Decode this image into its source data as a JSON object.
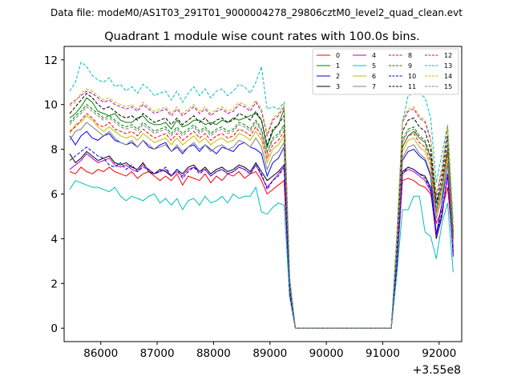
{
  "header": "Data file: modeM0/AS1T03_291T01_9000004278_29806cztM0_level2_quad_clean.evt",
  "chart_data": {
    "type": "line",
    "title": "Quadrant 1 module wise count rates with 100.0s bins.",
    "xlabel": "",
    "ylabel": "",
    "x_offset_label": "+3.55e8",
    "xlim": [
      85350,
      92400
    ],
    "ylim": [
      -0.6,
      12.6
    ],
    "xticks": [
      86000,
      87000,
      88000,
      89000,
      90000,
      91000,
      92000
    ],
    "yticks": [
      0,
      2,
      4,
      6,
      8,
      10,
      12
    ],
    "x": [
      85450,
      85550,
      85650,
      85750,
      85850,
      85950,
      86050,
      86150,
      86250,
      86350,
      86450,
      86550,
      86650,
      86750,
      86850,
      86950,
      87050,
      87150,
      87250,
      87350,
      87450,
      87550,
      87650,
      87750,
      87850,
      87950,
      88050,
      88150,
      88250,
      88350,
      88450,
      88550,
      88650,
      88750,
      88850,
      88950,
      89050,
      89150,
      89250,
      89350,
      89450,
      89550,
      89650,
      89750,
      89850,
      89950,
      90050,
      90150,
      90250,
      90350,
      90450,
      90550,
      90650,
      90750,
      90850,
      90950,
      91050,
      91150,
      91250,
      91350,
      91450,
      91550,
      91650,
      91750,
      91850,
      91950,
      92050,
      92150,
      92250
    ],
    "legend": {
      "placement": "top-right",
      "ncol": 4
    },
    "series": [
      {
        "name": "0",
        "color": "#ff0000",
        "dash": false,
        "values": [
          7.0,
          6.9,
          7.2,
          7.0,
          6.9,
          7.1,
          7.0,
          7.2,
          7.0,
          6.9,
          6.8,
          7.0,
          6.7,
          6.9,
          7.0,
          6.8,
          6.6,
          6.8,
          6.6,
          6.9,
          6.4,
          6.8,
          6.7,
          6.6,
          6.9,
          6.5,
          6.8,
          6.6,
          6.9,
          6.8,
          7.0,
          6.7,
          6.9,
          7.0,
          6.6,
          6.0,
          6.2,
          6.4,
          6.6,
          1.5,
          0,
          0,
          0,
          0,
          0,
          0,
          0,
          0,
          0,
          0,
          0,
          0,
          0,
          0,
          0,
          0,
          0,
          0,
          2.7,
          6.6,
          6.7,
          6.6,
          6.4,
          6.3,
          6.0,
          4.7,
          5.3,
          6.3,
          3.6
        ]
      },
      {
        "name": "1",
        "color": "#008000",
        "dash": false,
        "values": [
          9.4,
          9.6,
          9.9,
          10.3,
          10.1,
          9.7,
          9.6,
          9.5,
          9.6,
          9.3,
          9.2,
          9.2,
          9.4,
          9.5,
          9.2,
          9.1,
          9.1,
          9.2,
          8.9,
          9.3,
          9.0,
          9.1,
          9.3,
          9.3,
          9.1,
          9.2,
          9.1,
          9.3,
          9.2,
          9.4,
          9.3,
          9.4,
          9.5,
          9.6,
          9.3,
          8.1,
          8.8,
          9.1,
          9.8,
          2.0,
          0,
          0,
          0,
          0,
          0,
          0,
          0,
          0,
          0,
          0,
          0,
          0,
          0,
          0,
          0,
          0,
          0,
          0,
          3.6,
          8.1,
          8.6,
          8.8,
          8.5,
          8.3,
          7.6,
          5.6,
          6.4,
          7.9,
          4.2
        ]
      },
      {
        "name": "2",
        "color": "#0000ff",
        "dash": false,
        "values": [
          8.6,
          8.2,
          8.6,
          8.8,
          8.5,
          8.4,
          8.6,
          8.7,
          8.4,
          8.3,
          8.2,
          8.3,
          8.1,
          8.4,
          8.1,
          8.0,
          8.2,
          8.3,
          7.9,
          8.1,
          7.8,
          8.1,
          8.2,
          7.9,
          8.2,
          8.0,
          7.8,
          8.1,
          8.0,
          7.9,
          8.2,
          8.3,
          8.1,
          8.0,
          7.8,
          6.8,
          7.4,
          7.6,
          8.1,
          1.8,
          0,
          0,
          0,
          0,
          0,
          0,
          0,
          0,
          0,
          0,
          0,
          0,
          0,
          0,
          0,
          0,
          0,
          0,
          3.1,
          7.5,
          7.9,
          8.0,
          7.7,
          7.5,
          6.8,
          4.2,
          5.6,
          7.4,
          3.2
        ]
      },
      {
        "name": "3",
        "color": "#000000",
        "dash": false,
        "values": [
          7.8,
          7.4,
          7.6,
          7.9,
          7.7,
          7.5,
          7.6,
          7.7,
          7.4,
          7.3,
          7.4,
          7.2,
          7.1,
          7.4,
          7.0,
          6.9,
          7.1,
          7.0,
          6.8,
          7.1,
          6.9,
          7.2,
          7.3,
          7.0,
          7.2,
          6.9,
          7.1,
          7.2,
          7.0,
          7.1,
          7.3,
          7.2,
          7.0,
          7.4,
          7.0,
          6.6,
          6.8,
          7.0,
          7.3,
          1.6,
          0,
          0,
          0,
          0,
          0,
          0,
          0,
          0,
          0,
          0,
          0,
          0,
          0,
          0,
          0,
          0,
          0,
          0,
          2.9,
          7.0,
          7.2,
          7.1,
          6.9,
          6.8,
          6.3,
          4.0,
          5.0,
          6.9,
          3.4
        ]
      },
      {
        "name": "4",
        "color": "#c000c0",
        "dash": false,
        "values": [
          7.1,
          7.3,
          7.5,
          7.8,
          7.6,
          7.4,
          7.5,
          7.6,
          7.3,
          7.2,
          7.3,
          7.1,
          7.0,
          7.3,
          7.1,
          6.9,
          7.0,
          7.1,
          6.8,
          7.0,
          6.8,
          7.1,
          7.2,
          7.0,
          7.1,
          6.8,
          7.0,
          7.1,
          6.9,
          7.0,
          7.2,
          7.1,
          6.9,
          7.3,
          6.8,
          6.3,
          6.6,
          6.9,
          7.2,
          1.5,
          0,
          0,
          0,
          0,
          0,
          0,
          0,
          0,
          0,
          0,
          0,
          0,
          0,
          0,
          0,
          0,
          0,
          0,
          2.8,
          6.9,
          7.1,
          7.0,
          6.8,
          6.6,
          6.1,
          4.1,
          5.1,
          6.8,
          3.3
        ]
      },
      {
        "name": "5",
        "color": "#00bfbf",
        "dash": false,
        "values": [
          6.2,
          6.6,
          6.5,
          6.4,
          6.3,
          6.3,
          6.2,
          6.1,
          6.3,
          5.9,
          5.7,
          5.9,
          5.8,
          5.7,
          5.9,
          6.0,
          5.6,
          5.8,
          5.5,
          5.8,
          5.3,
          5.7,
          5.8,
          5.5,
          5.9,
          5.6,
          5.7,
          5.9,
          5.6,
          6.0,
          5.8,
          5.9,
          5.9,
          6.3,
          5.2,
          5.1,
          5.4,
          5.6,
          5.5,
          1.4,
          0,
          0,
          0,
          0,
          0,
          0,
          0,
          0,
          0,
          0,
          0,
          0,
          0,
          0,
          0,
          0,
          0,
          0,
          2.4,
          5.3,
          5.3,
          5.9,
          5.9,
          4.3,
          4.1,
          3.1,
          4.7,
          5.6,
          2.5
        ]
      },
      {
        "name": "6",
        "color": "#bfbf00",
        "dash": false,
        "values": [
          8.7,
          9.1,
          9.2,
          9.5,
          9.3,
          9.0,
          8.8,
          9.0,
          8.8,
          8.6,
          8.5,
          8.6,
          8.4,
          8.7,
          8.5,
          8.3,
          8.4,
          8.5,
          8.2,
          8.5,
          8.2,
          8.4,
          8.6,
          8.3,
          8.5,
          8.2,
          8.4,
          8.5,
          8.3,
          8.4,
          8.7,
          8.6,
          8.4,
          8.8,
          8.4,
          7.4,
          8.0,
          8.2,
          8.6,
          1.9,
          0,
          0,
          0,
          0,
          0,
          0,
          0,
          0,
          0,
          0,
          0,
          0,
          0,
          0,
          0,
          0,
          0,
          0,
          3.4,
          7.9,
          8.4,
          8.5,
          8.1,
          7.9,
          7.2,
          5.1,
          6.1,
          7.7,
          3.9
        ]
      },
      {
        "name": "7",
        "color": "#808080",
        "dash": false,
        "values": [
          8.4,
          8.8,
          8.9,
          9.2,
          9.0,
          8.8,
          8.6,
          8.8,
          8.5,
          8.3,
          8.2,
          8.4,
          8.1,
          8.4,
          8.2,
          8.0,
          8.1,
          8.2,
          7.9,
          8.2,
          7.9,
          8.1,
          8.3,
          8.0,
          8.2,
          7.9,
          8.1,
          8.2,
          8.0,
          8.1,
          8.4,
          8.3,
          8.1,
          8.5,
          8.1,
          7.1,
          7.7,
          7.9,
          8.3,
          1.8,
          0,
          0,
          0,
          0,
          0,
          0,
          0,
          0,
          0,
          0,
          0,
          0,
          0,
          0,
          0,
          0,
          0,
          0,
          3.2,
          7.6,
          8.1,
          8.2,
          7.8,
          7.6,
          6.9,
          4.9,
          5.9,
          7.4,
          3.7
        ]
      },
      {
        "name": "8",
        "color": "#ff0000",
        "dash": true,
        "values": [
          8.8,
          9.0,
          9.3,
          9.6,
          9.4,
          9.1,
          9.0,
          9.2,
          8.9,
          8.8,
          8.7,
          8.8,
          8.6,
          8.9,
          8.7,
          8.5,
          8.6,
          8.7,
          8.4,
          8.7,
          8.4,
          8.6,
          8.8,
          8.5,
          8.7,
          8.4,
          8.6,
          8.7,
          8.5,
          8.6,
          8.9,
          8.8,
          8.6,
          9.0,
          8.6,
          7.6,
          8.2,
          8.4,
          8.8,
          1.9,
          0,
          0,
          0,
          0,
          0,
          0,
          0,
          0,
          0,
          0,
          0,
          0,
          0,
          0,
          0,
          0,
          0,
          0,
          3.4,
          8.1,
          8.6,
          8.7,
          8.3,
          8.1,
          7.4,
          5.2,
          6.3,
          7.9,
          4.0
        ]
      },
      {
        "name": "9",
        "color": "#008000",
        "dash": true,
        "values": [
          9.2,
          9.5,
          9.7,
          10.0,
          9.8,
          9.6,
          9.4,
          9.5,
          9.3,
          9.1,
          9.0,
          9.1,
          8.9,
          9.2,
          9.0,
          8.8,
          8.9,
          9.0,
          8.7,
          9.0,
          8.7,
          8.9,
          9.1,
          8.8,
          9.0,
          8.7,
          8.9,
          9.0,
          8.8,
          8.9,
          9.2,
          9.1,
          8.9,
          9.3,
          8.9,
          7.9,
          8.5,
          8.7,
          9.1,
          2.0,
          0,
          0,
          0,
          0,
          0,
          0,
          0,
          0,
          0,
          0,
          0,
          0,
          0,
          0,
          0,
          0,
          0,
          0,
          3.5,
          8.4,
          8.9,
          9.0,
          8.6,
          8.4,
          7.7,
          5.4,
          6.5,
          8.2,
          4.1
        ]
      },
      {
        "name": "10",
        "color": "#0000ff",
        "dash": true,
        "values": [
          7.5,
          7.7,
          7.9,
          8.1,
          7.9,
          7.7,
          7.6,
          7.3,
          7.2,
          7.4,
          7.1,
          7.3,
          7.0,
          7.2,
          7.1,
          6.9,
          7.0,
          7.2,
          6.8,
          7.1,
          6.7,
          7.0,
          7.2,
          6.9,
          7.1,
          6.8,
          7.0,
          7.1,
          6.9,
          7.0,
          7.2,
          7.1,
          6.9,
          7.3,
          6.9,
          6.2,
          6.6,
          6.8,
          7.2,
          1.5,
          0,
          0,
          0,
          0,
          0,
          0,
          0,
          0,
          0,
          0,
          0,
          0,
          0,
          0,
          0,
          0,
          0,
          0,
          2.8,
          6.9,
          7.2,
          7.1,
          6.9,
          6.7,
          6.2,
          4.2,
          5.2,
          6.9,
          3.3
        ]
      },
      {
        "name": "11",
        "color": "#000000",
        "dash": true,
        "values": [
          9.6,
          9.9,
          10.2,
          10.5,
          10.3,
          10.0,
          9.8,
          9.9,
          9.7,
          9.5,
          9.4,
          9.5,
          9.3,
          9.6,
          9.4,
          9.2,
          9.3,
          9.4,
          9.1,
          9.4,
          9.1,
          9.3,
          9.5,
          9.2,
          9.4,
          9.1,
          9.3,
          9.4,
          9.2,
          9.3,
          9.6,
          9.5,
          9.3,
          9.7,
          9.3,
          8.2,
          8.9,
          9.1,
          9.5,
          2.1,
          0,
          0,
          0,
          0,
          0,
          0,
          0,
          0,
          0,
          0,
          0,
          0,
          0,
          0,
          0,
          0,
          0,
          0,
          3.7,
          8.8,
          9.3,
          9.4,
          9.0,
          8.8,
          8.0,
          5.6,
          6.8,
          8.6,
          4.3
        ]
      },
      {
        "name": "12",
        "color": "#c000c0",
        "dash": true,
        "values": [
          10.0,
          10.2,
          10.4,
          10.6,
          10.5,
          10.3,
          10.1,
          10.2,
          10.0,
          9.9,
          9.8,
          9.9,
          9.7,
          10.0,
          9.8,
          9.6,
          9.7,
          9.8,
          9.5,
          9.8,
          9.5,
          9.7,
          9.9,
          9.6,
          9.8,
          9.5,
          9.7,
          9.8,
          9.6,
          9.7,
          10.0,
          9.9,
          9.7,
          10.1,
          9.7,
          8.6,
          9.3,
          9.5,
          9.9,
          2.2,
          0,
          0,
          0,
          0,
          0,
          0,
          0,
          0,
          0,
          0,
          0,
          0,
          0,
          0,
          0,
          0,
          0,
          0,
          3.9,
          9.2,
          9.7,
          9.8,
          9.4,
          9.2,
          8.4,
          5.9,
          7.1,
          9.0,
          4.5
        ]
      },
      {
        "name": "13",
        "color": "#00bfbf",
        "dash": true,
        "values": [
          10.6,
          11.0,
          11.9,
          11.7,
          11.3,
          11.1,
          11.0,
          11.2,
          10.8,
          10.9,
          10.6,
          10.8,
          10.5,
          10.9,
          10.7,
          10.4,
          10.5,
          10.6,
          10.2,
          10.6,
          10.1,
          10.5,
          10.8,
          10.4,
          10.7,
          10.3,
          10.6,
          10.7,
          10.4,
          10.6,
          10.9,
          10.8,
          10.5,
          11.0,
          11.7,
          9.8,
          9.9,
          9.8,
          10.1,
          2.3,
          0,
          0,
          0,
          0,
          0,
          0,
          0,
          0,
          0,
          0,
          0,
          0,
          0,
          0,
          0,
          0,
          0,
          0,
          4.3,
          9.2,
          10.4,
          10.5,
          10.5,
          10.3,
          9.4,
          6.5,
          7.8,
          9.1,
          4.8
        ]
      },
      {
        "name": "14",
        "color": "#bfbf00",
        "dash": true,
        "values": [
          9.9,
          10.1,
          10.5,
          10.7,
          10.6,
          10.4,
          10.2,
          10.3,
          10.1,
          10.0,
          9.9,
          10.0,
          9.8,
          10.1,
          9.9,
          9.7,
          9.8,
          9.9,
          9.6,
          9.9,
          9.6,
          9.8,
          10.0,
          9.7,
          9.9,
          9.6,
          9.8,
          9.9,
          9.7,
          9.8,
          10.1,
          10.0,
          9.8,
          10.2,
          9.8,
          8.7,
          9.4,
          9.6,
          10.0,
          2.2,
          0,
          0,
          0,
          0,
          0,
          0,
          0,
          0,
          0,
          0,
          0,
          0,
          0,
          0,
          0,
          0,
          0,
          0,
          4.0,
          9.3,
          9.8,
          9.9,
          9.5,
          9.3,
          8.5,
          6.0,
          7.2,
          9.1,
          4.6
        ]
      },
      {
        "name": "15",
        "color": "#808080",
        "dash": true,
        "values": [
          9.1,
          9.4,
          9.6,
          9.9,
          9.7,
          9.5,
          9.3,
          9.4,
          9.2,
          9.0,
          8.9,
          9.0,
          8.8,
          9.1,
          8.9,
          8.7,
          8.8,
          8.9,
          8.6,
          8.9,
          8.6,
          8.8,
          9.0,
          8.7,
          8.9,
          8.6,
          8.8,
          8.9,
          8.7,
          8.8,
          9.1,
          9.0,
          8.8,
          9.2,
          8.8,
          7.8,
          8.4,
          8.6,
          9.0,
          2.0,
          0,
          0,
          0,
          0,
          0,
          0,
          0,
          0,
          0,
          0,
          0,
          0,
          0,
          0,
          0,
          0,
          0,
          0,
          3.5,
          8.3,
          8.8,
          8.9,
          8.5,
          8.3,
          7.6,
          5.3,
          6.4,
          8.1,
          4.1
        ]
      }
    ]
  }
}
